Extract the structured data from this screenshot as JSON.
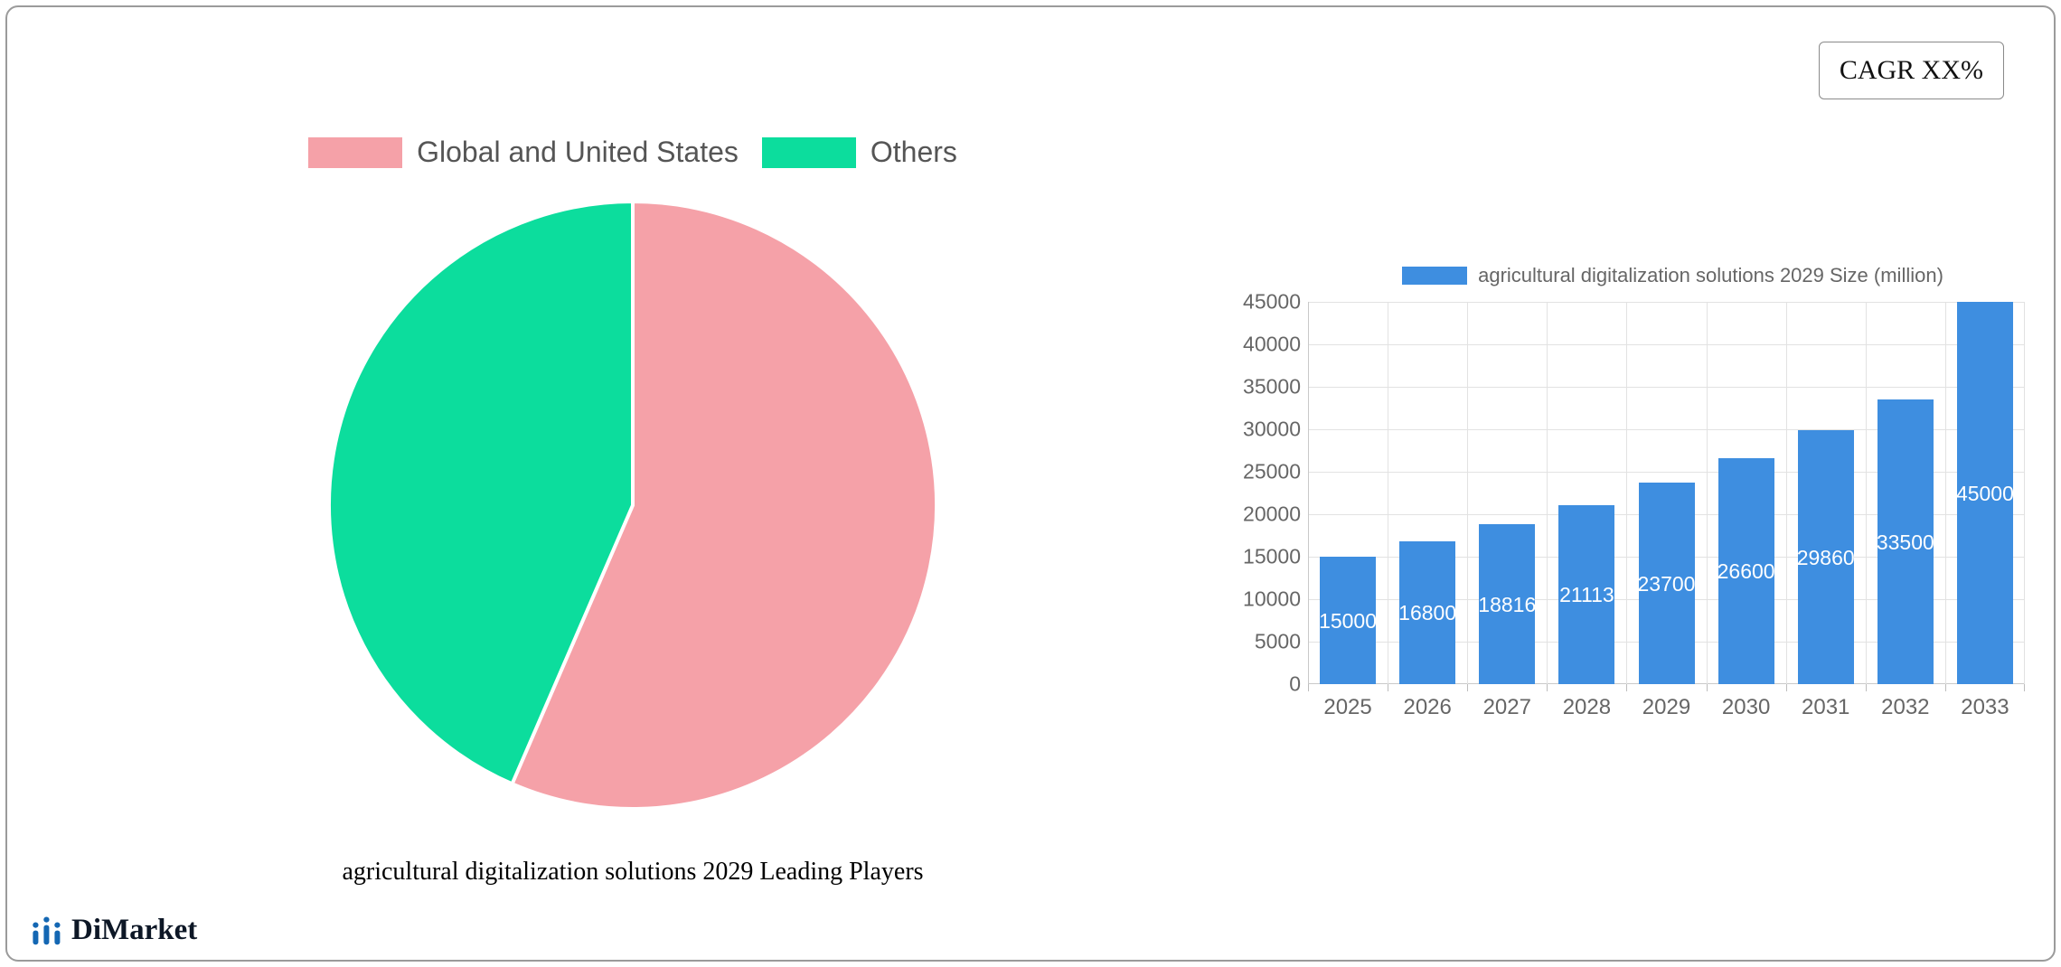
{
  "cagr": {
    "label": "CAGR XX%"
  },
  "brand": {
    "name": "DiMarket"
  },
  "chart_data": [
    {
      "type": "pie",
      "title": "agricultural digitalization solutions 2029 Leading Players",
      "labels": [
        "Global and United States",
        "Others"
      ],
      "values": [
        56.5,
        43.5
      ],
      "colors": [
        "#F5A1A8",
        "#0CDD9D"
      ],
      "legend_position": "top",
      "start_angle_deg": 0,
      "direction": "clockwise"
    },
    {
      "type": "bar",
      "legend": "agricultural digitalization solutions 2029 Size (million)",
      "categories": [
        "2025",
        "2026",
        "2027",
        "2028",
        "2029",
        "2030",
        "2031",
        "2032",
        "2033"
      ],
      "values": [
        15000,
        16800,
        18816,
        21113,
        23700,
        26600,
        29860,
        33500,
        45000
      ],
      "color": "#3E8EE0",
      "ylim": [
        0,
        45000
      ],
      "ytick_step": 5000,
      "grid": true,
      "value_labels": "inside-white"
    }
  ]
}
